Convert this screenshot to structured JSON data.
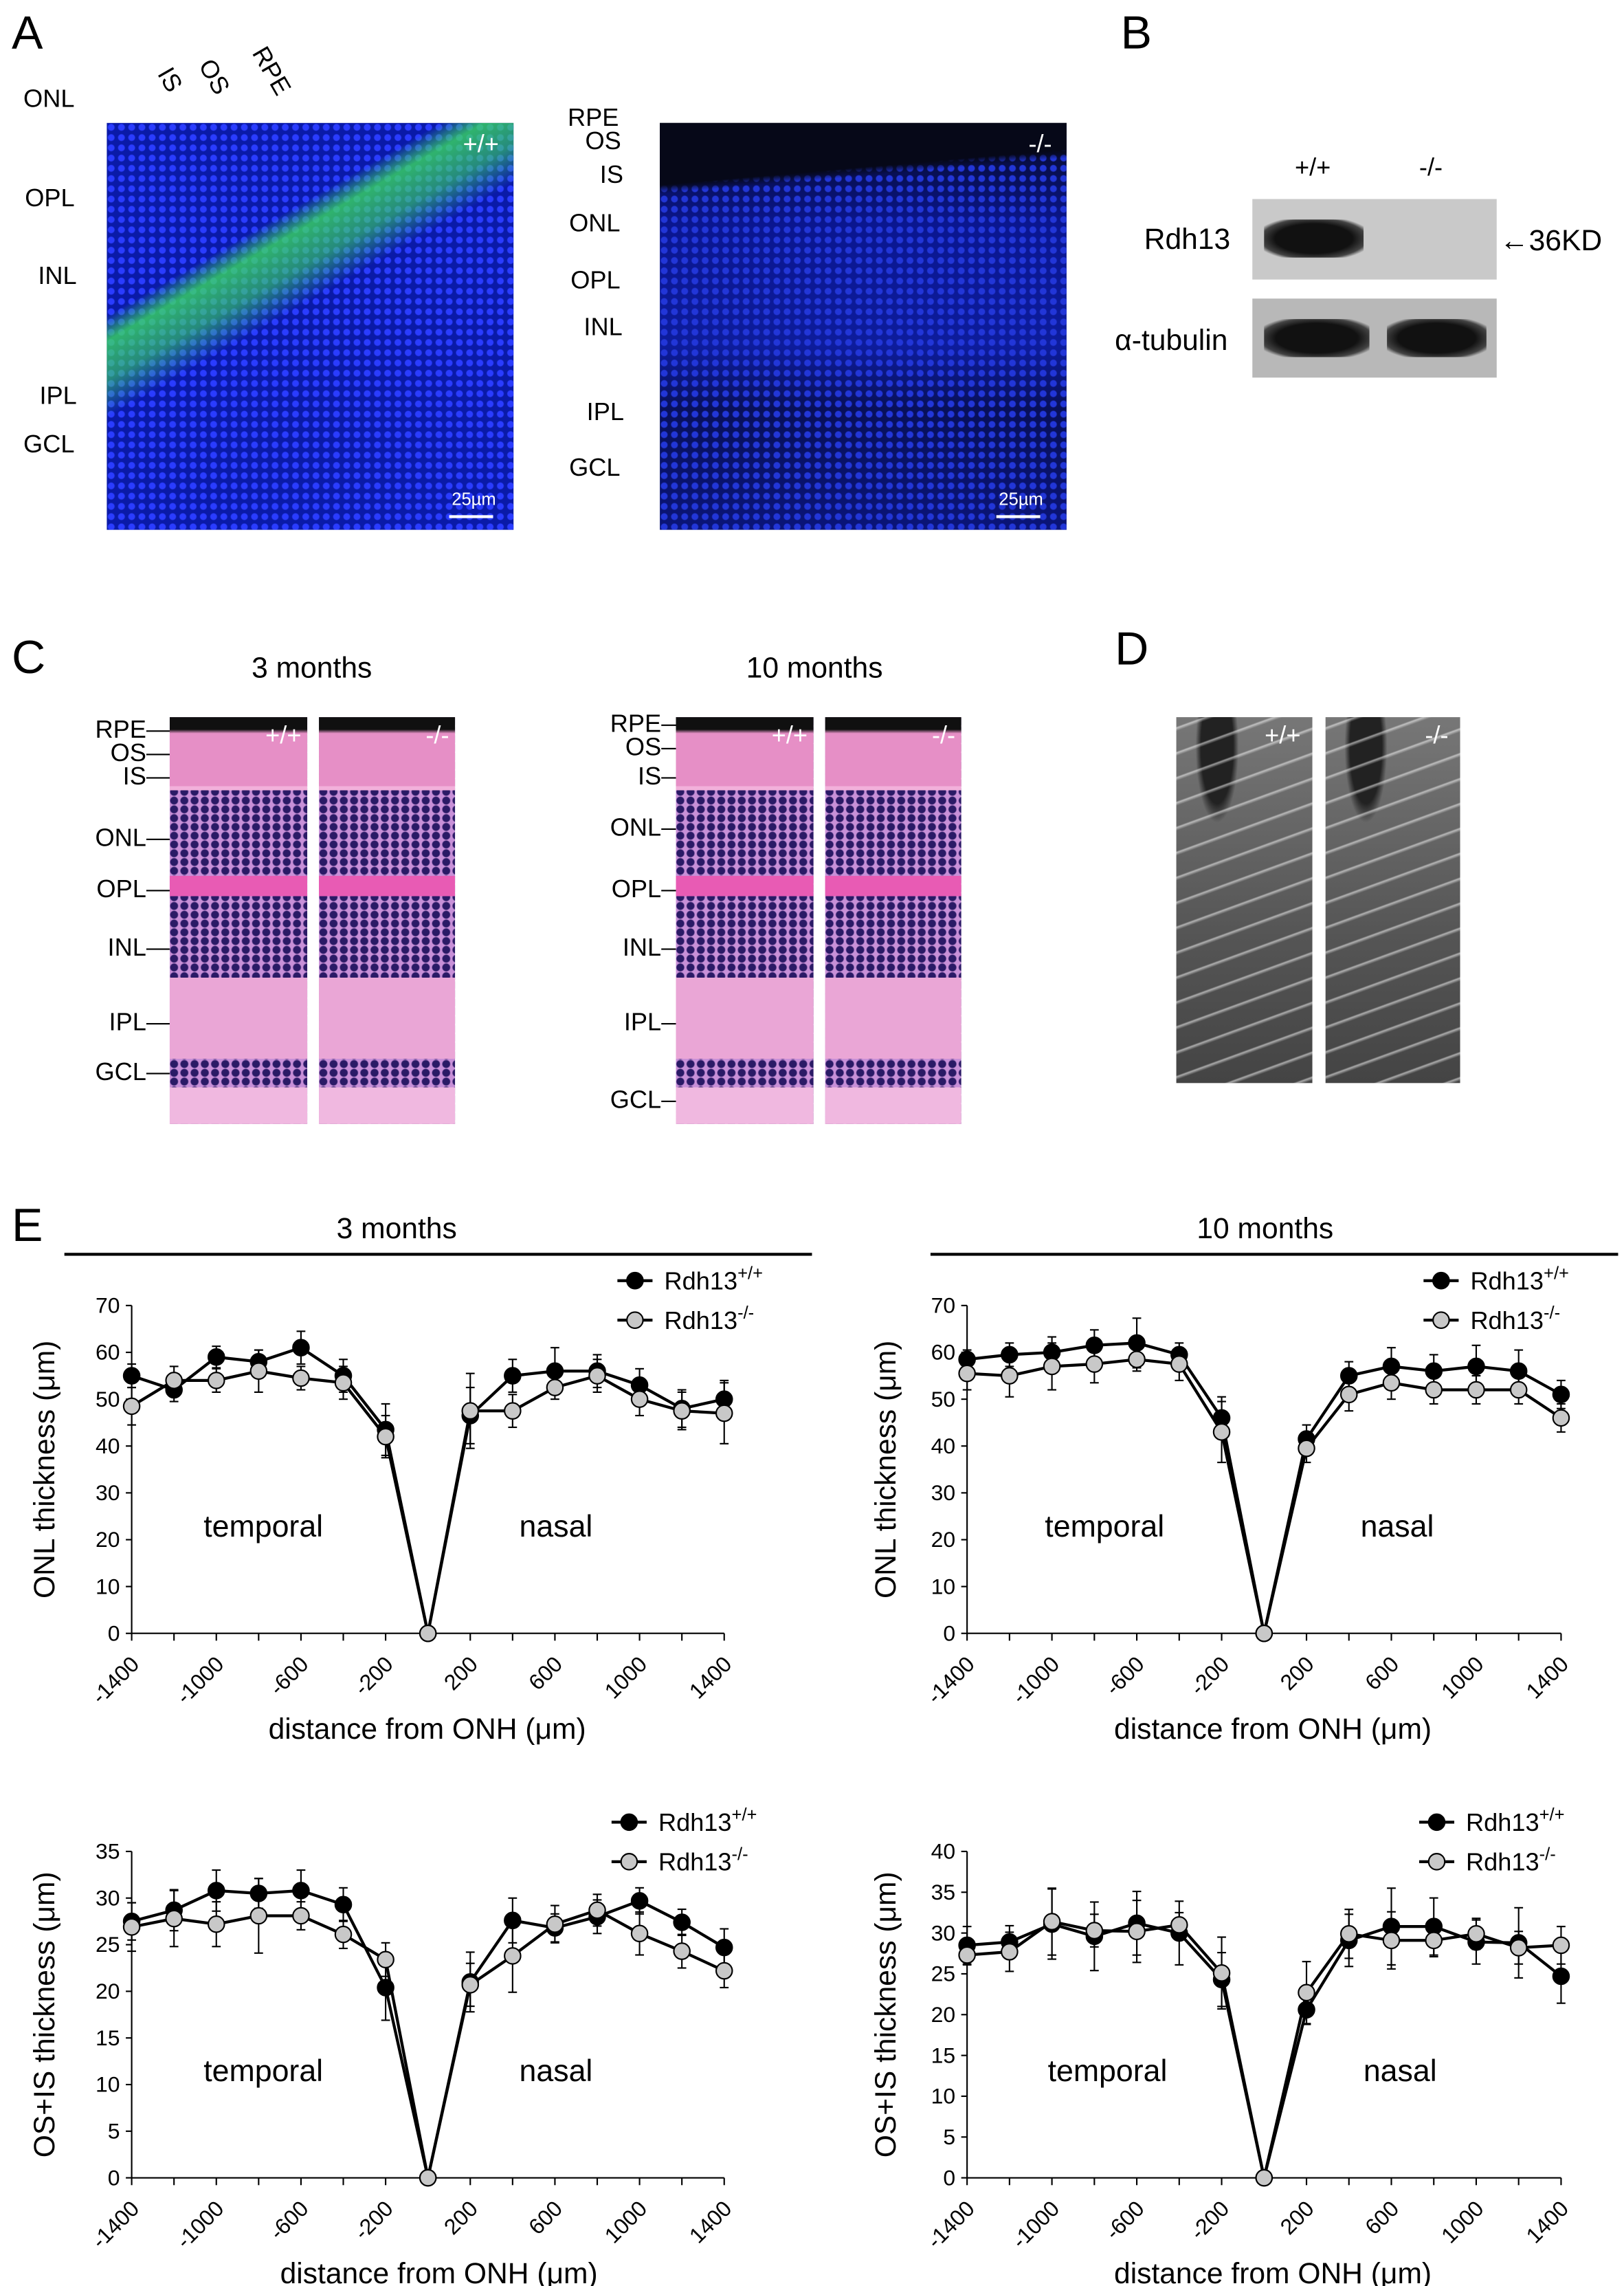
{
  "panels": {
    "A": {
      "letter": "A",
      "left_genotype": "+/+",
      "right_genotype": "-/-",
      "scale_bar": "25µm",
      "left_labels": [
        "ONL",
        "OPL",
        "INL",
        "IPL",
        "GCL"
      ],
      "left_top_labels": [
        "IS",
        "OS",
        "RPE"
      ],
      "right_labels": [
        "RPE",
        "OS",
        "IS",
        "ONL",
        "OPL",
        "INL",
        "IPL",
        "GCL"
      ]
    },
    "B": {
      "letter": "B",
      "col_labels": [
        "+/+",
        "-/-"
      ],
      "row_labels": [
        "Rdh13",
        "α-tubulin"
      ],
      "marker": "←36KD"
    },
    "C": {
      "letter": "C",
      "group_titles": [
        "3 months",
        "10 months"
      ],
      "genotypes": [
        "+/+",
        "-/-"
      ],
      "layer_labels": [
        "RPE",
        "OS",
        "IS",
        "ONL",
        "OPL",
        "INL",
        "IPL",
        "GCL"
      ]
    },
    "D": {
      "letter": "D",
      "genotypes": [
        "+/+",
        "-/-"
      ]
    },
    "E": {
      "letter": "E",
      "group_titles": [
        "3 months",
        "10 months"
      ]
    }
  },
  "chart_data": [
    {
      "type": "line",
      "group": "3 months",
      "ylabel": "ONL thickness (μm)",
      "xlabel": "distance from ONH (μm)",
      "x": [
        -1400,
        -1200,
        -1000,
        -800,
        -600,
        -400,
        -200,
        0,
        200,
        400,
        600,
        800,
        1000,
        1200,
        1400
      ],
      "xtick_labels": [
        "-1400",
        "-1000",
        "-600",
        "-200",
        "200",
        "600",
        "1000",
        "1400"
      ],
      "xtick_values": [
        -1400,
        -1000,
        -600,
        -200,
        200,
        600,
        1000,
        1400
      ],
      "ylim": [
        0,
        70
      ],
      "ystep": 10,
      "region_labels": [
        "temporal",
        "nasal"
      ],
      "series": [
        {
          "name": "Rdh13",
          "sup": "+/+",
          "color": "#000000",
          "values": [
            55,
            52,
            59,
            58,
            61,
            55,
            43.5,
            0,
            46.5,
            55,
            56,
            56,
            53,
            48,
            50
          ],
          "error": [
            2.5,
            2.5,
            2.3,
            2.5,
            3.5,
            3.5,
            5.5,
            0,
            6,
            3.5,
            5,
            3.5,
            3.5,
            4,
            4
          ]
        },
        {
          "name": "Rdh13",
          "sup": "-/-",
          "color": "#c8c8c8",
          "values": [
            48.5,
            54,
            54,
            56,
            54.5,
            53.5,
            42,
            0,
            47.5,
            47.5,
            52.5,
            55,
            50,
            47.5,
            47
          ],
          "error": [
            4,
            3,
            2.5,
            4.5,
            2.5,
            3.5,
            4.5,
            0,
            8,
            3.5,
            2.5,
            3.5,
            3.5,
            4,
            6.5
          ]
        }
      ]
    },
    {
      "type": "line",
      "group": "10 months",
      "ylabel": "ONL thickness (μm)",
      "xlabel": "distance from ONH (μm)",
      "x": [
        -1400,
        -1200,
        -1000,
        -800,
        -600,
        -400,
        -200,
        0,
        200,
        400,
        600,
        800,
        1000,
        1200,
        1400
      ],
      "xtick_labels": [
        "-1400",
        "-1000",
        "-600",
        "-200",
        "200",
        "600",
        "1000",
        "1400"
      ],
      "xtick_values": [
        -1400,
        -1000,
        -600,
        -200,
        200,
        600,
        1000,
        1400
      ],
      "ylim": [
        0,
        70
      ],
      "ystep": 10,
      "region_labels": [
        "temporal",
        "nasal"
      ],
      "series": [
        {
          "name": "Rdh13",
          "sup": "+/+",
          "color": "#000000",
          "values": [
            58.5,
            59.5,
            60,
            61.5,
            62,
            59.5,
            46,
            0,
            41.5,
            55,
            57,
            56,
            57,
            56,
            51
          ],
          "error": [
            2,
            2.5,
            3.3,
            3.3,
            5.3,
            2.5,
            4.5,
            0,
            3,
            3,
            4,
            3.5,
            4.5,
            4.5,
            3
          ]
        },
        {
          "name": "Rdh13",
          "sup": "-/-",
          "color": "#c8c8c8",
          "values": [
            55.5,
            55,
            57,
            57.5,
            58.5,
            57.5,
            43,
            0,
            39.5,
            51,
            53.5,
            52,
            52,
            52,
            46
          ],
          "error": [
            3.5,
            4.5,
            5,
            4,
            2.5,
            3.5,
            6.5,
            0,
            3,
            3.5,
            3.5,
            3,
            3,
            3,
            3
          ]
        }
      ]
    },
    {
      "type": "line",
      "group": "3 months",
      "ylabel": "OS+IS thickness (μm)",
      "xlabel": "distance from ONH (μm)",
      "x": [
        -1400,
        -1200,
        -1000,
        -800,
        -600,
        -400,
        -200,
        0,
        200,
        400,
        600,
        800,
        1000,
        1200,
        1400
      ],
      "xtick_labels": [
        "-1400",
        "-1000",
        "-600",
        "-200",
        "200",
        "600",
        "1000",
        "1400"
      ],
      "xtick_values": [
        -1400,
        -1000,
        -600,
        -200,
        200,
        600,
        1000,
        1400
      ],
      "ylim": [
        0,
        35
      ],
      "ystep": 5,
      "region_labels": [
        "temporal",
        "nasal"
      ],
      "series": [
        {
          "name": "Rdh13",
          "sup": "+/+",
          "color": "#000000",
          "values": [
            27.5,
            28.7,
            30.8,
            30.5,
            30.8,
            29.3,
            20.4,
            0,
            21,
            27.6,
            26.8,
            28,
            29.7,
            27.4,
            24.7
          ],
          "error": [
            2,
            2.2,
            2.2,
            1.6,
            2.2,
            1.8,
            3.5,
            0,
            3.2,
            2.4,
            1.5,
            1.8,
            1.4,
            1.4,
            2
          ]
        },
        {
          "name": "Rdh13",
          "sup": "-/-",
          "color": "#c8c8c8",
          "values": [
            26.9,
            27.8,
            27.2,
            28.1,
            28.1,
            26.1,
            23.4,
            0,
            20.7,
            23.8,
            27.2,
            28.7,
            26.2,
            24.3,
            22.2
          ],
          "error": [
            2.6,
            3,
            2.4,
            4,
            1.5,
            1.5,
            1.8,
            0,
            2.3,
            3.9,
            2,
            1.7,
            2.3,
            1.8,
            1.8
          ]
        }
      ]
    },
    {
      "type": "line",
      "group": "10 months",
      "ylabel": "OS+IS thickness (μm)",
      "xlabel": "distance from ONH (μm)",
      "x": [
        -1400,
        -1200,
        -1000,
        -800,
        -600,
        -400,
        -200,
        0,
        200,
        400,
        600,
        800,
        1000,
        1200,
        1400
      ],
      "xtick_labels": [
        "-1400",
        "-1000",
        "-600",
        "-200",
        "200",
        "600",
        "1000",
        "1400"
      ],
      "xtick_values": [
        -1400,
        -1000,
        -600,
        -200,
        200,
        600,
        1000,
        1400
      ],
      "ylim": [
        0,
        40
      ],
      "ystep": 5,
      "region_labels": [
        "temporal",
        "nasal"
      ],
      "series": [
        {
          "name": "Rdh13",
          "sup": "+/+",
          "color": "#000000",
          "values": [
            28.5,
            28.9,
            31.1,
            29.6,
            31.2,
            30,
            24.3,
            0,
            20.6,
            29.1,
            30.8,
            30.8,
            28.9,
            28.8,
            24.7
          ],
          "error": [
            2.3,
            2,
            4.3,
            4.2,
            3.9,
            3.9,
            3.3,
            0,
            1.8,
            3.2,
            4.7,
            3.5,
            2.7,
            4.3,
            3.3
          ]
        },
        {
          "name": "Rdh13",
          "sup": "-/-",
          "color": "#c8c8c8",
          "values": [
            27.3,
            27.7,
            31.4,
            30.3,
            30.2,
            31,
            25.1,
            0,
            22.7,
            29.9,
            29.1,
            29.1,
            29.9,
            28.2,
            28.5
          ],
          "error": [
            1.2,
            2.4,
            4.1,
            2,
            3.8,
            1.5,
            4.4,
            0,
            3.8,
            3,
            3.5,
            2,
            1.9,
            2,
            2.3
          ]
        }
      ]
    }
  ]
}
